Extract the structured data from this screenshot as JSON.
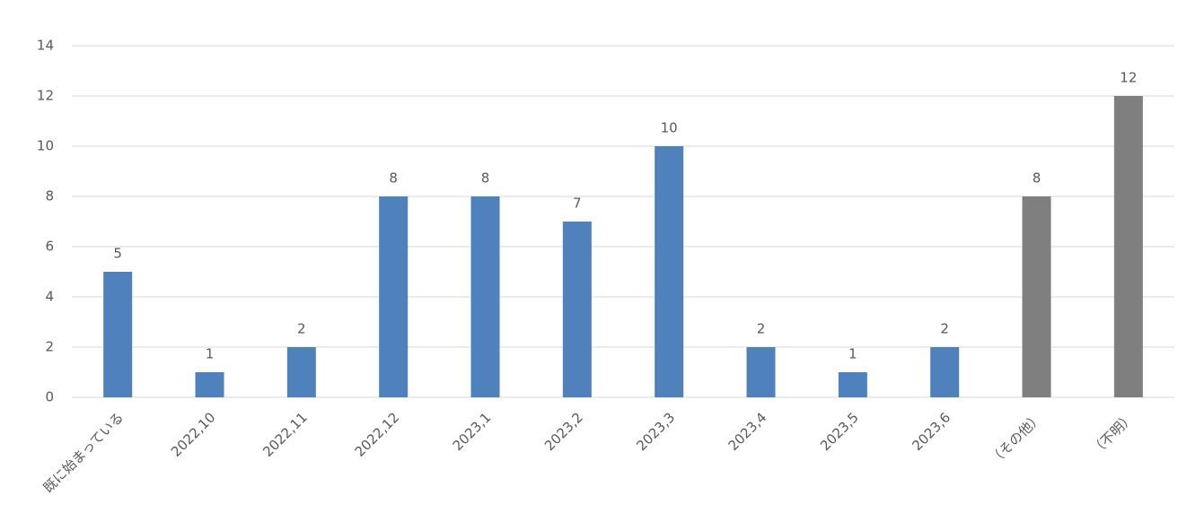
{
  "chart_data": {
    "type": "bar",
    "categories": [
      "既に始まっている",
      "2022,10",
      "2022,11",
      "2022,12",
      "2023,1",
      "2023,2",
      "2023,3",
      "2023,4",
      "2023,5",
      "2023,6",
      "（その他）",
      "（不明）"
    ],
    "values": [
      5,
      1,
      2,
      8,
      8,
      7,
      10,
      2,
      1,
      2,
      8,
      12
    ],
    "colors": [
      "#4f81bd",
      "#4f81bd",
      "#4f81bd",
      "#4f81bd",
      "#4f81bd",
      "#4f81bd",
      "#4f81bd",
      "#4f81bd",
      "#4f81bd",
      "#4f81bd",
      "#7f7f7f",
      "#7f7f7f"
    ],
    "ylim": [
      0,
      14
    ],
    "yticks": [
      0,
      2,
      4,
      6,
      8,
      10,
      12,
      14
    ],
    "grid": true
  }
}
